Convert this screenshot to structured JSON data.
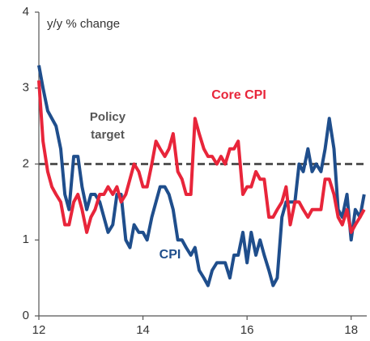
{
  "chart_data": {
    "type": "line",
    "y_label": "y/y % change",
    "x": [
      12,
      12.08,
      12.17,
      12.25,
      12.33,
      12.42,
      12.5,
      12.58,
      12.67,
      12.75,
      12.83,
      12.92,
      13,
      13.08,
      13.17,
      13.25,
      13.33,
      13.42,
      13.5,
      13.58,
      13.67,
      13.75,
      13.83,
      13.92,
      14,
      14.08,
      14.17,
      14.25,
      14.33,
      14.42,
      14.5,
      14.58,
      14.67,
      14.75,
      14.83,
      14.92,
      15,
      15.08,
      15.17,
      15.25,
      15.33,
      15.42,
      15.5,
      15.58,
      15.67,
      15.75,
      15.83,
      15.92,
      16,
      16.08,
      16.17,
      16.25,
      16.33,
      16.42,
      16.5,
      16.58,
      16.67,
      16.75,
      16.83,
      16.92,
      17,
      17.08,
      17.17,
      17.25,
      17.33,
      17.42,
      17.5,
      17.58,
      17.67,
      17.75,
      17.83,
      17.92,
      18,
      18.08,
      18.17,
      18.25
    ],
    "series": [
      {
        "name": "CPI",
        "color": "#1f4e8c",
        "values": [
          3.3,
          3.0,
          2.7,
          2.6,
          2.5,
          2.2,
          1.6,
          1.4,
          2.1,
          2.1,
          1.7,
          1.4,
          1.6,
          1.6,
          1.5,
          1.3,
          1.1,
          1.2,
          1.6,
          1.6,
          1.0,
          0.9,
          1.2,
          1.1,
          1.1,
          1.0,
          1.3,
          1.5,
          1.7,
          1.7,
          1.6,
          1.4,
          1.0,
          1.0,
          0.9,
          0.8,
          0.9,
          0.6,
          0.5,
          0.4,
          0.6,
          0.7,
          0.7,
          0.7,
          0.5,
          0.8,
          0.8,
          1.1,
          0.7,
          1.1,
          0.8,
          1.0,
          0.8,
          0.6,
          0.4,
          0.5,
          1.3,
          1.5,
          1.5,
          1.5,
          2.0,
          1.9,
          2.2,
          1.9,
          2.0,
          1.9,
          2.2,
          2.6,
          2.2,
          1.4,
          1.3,
          1.6,
          1.0,
          1.4,
          1.3,
          1.6
        ]
      },
      {
        "name": "Core CPI",
        "color": "#e8253a",
        "values": [
          3.1,
          2.3,
          1.9,
          1.7,
          1.6,
          1.5,
          1.2,
          1.2,
          1.5,
          1.6,
          1.4,
          1.1,
          1.3,
          1.4,
          1.6,
          1.6,
          1.7,
          1.6,
          1.7,
          1.5,
          1.6,
          1.8,
          2.0,
          1.9,
          1.7,
          1.7,
          2.0,
          2.3,
          2.2,
          2.1,
          2.2,
          2.4,
          1.9,
          1.8,
          1.6,
          1.6,
          2.6,
          2.4,
          2.2,
          2.1,
          2.1,
          2.0,
          2.1,
          2.0,
          2.2,
          2.2,
          2.3,
          1.6,
          1.7,
          1.7,
          1.9,
          1.8,
          1.8,
          1.3,
          1.3,
          1.4,
          1.5,
          1.7,
          1.2,
          1.5,
          1.5,
          1.4,
          1.3,
          1.4,
          1.4,
          1.4,
          1.8,
          1.8,
          1.6,
          1.3,
          1.2,
          1.4,
          1.1,
          1.2,
          1.3,
          1.4
        ]
      }
    ],
    "reference_line": {
      "value": 2,
      "label": [
        "Policy",
        "target"
      ],
      "color": "#555555"
    },
    "xlim": [
      12,
      18.3
    ],
    "xticks": [
      12,
      14,
      16,
      18
    ],
    "ylim": [
      0,
      4
    ],
    "yticks": [
      0,
      1,
      2,
      3,
      4
    ]
  }
}
